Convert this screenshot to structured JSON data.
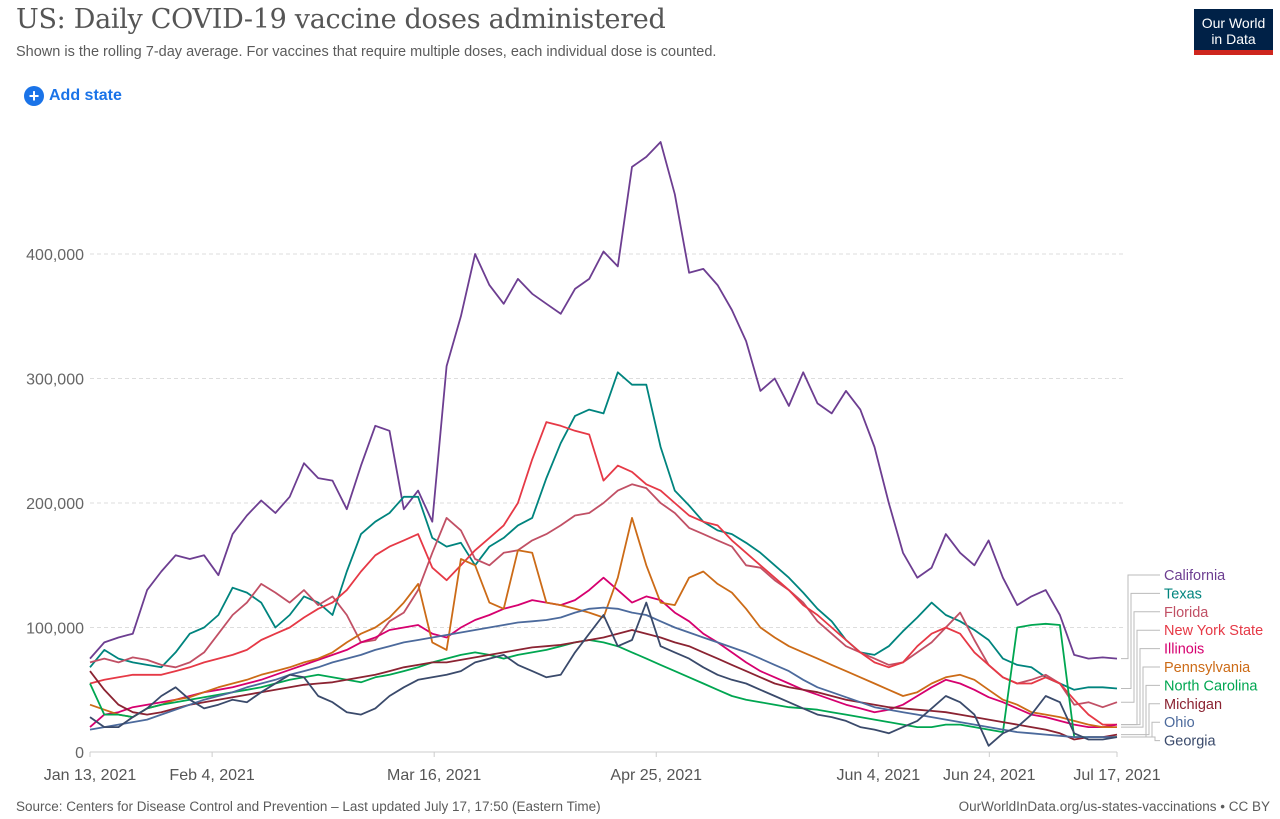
{
  "header": {
    "title": "US: Daily COVID-19 vaccine doses administered",
    "subtitle": "Shown is the rolling 7-day average. For vaccines that require multiple doses, each individual dose is counted.",
    "logo_line1": "Our World",
    "logo_line2": "in Data",
    "add_state_label": "Add state",
    "add_state_icon": "plus-circle-icon"
  },
  "footer": {
    "source": "Source: Centers for Disease Control and Prevention – Last updated July 17, 17:50 (Eastern Time)",
    "attribution": "OurWorldInData.org/us-states-vaccinations • CC BY"
  },
  "chart_data": {
    "type": "line",
    "title": "US: Daily COVID-19 vaccine doses administered",
    "subtitle": "Shown is the rolling 7-day average. For vaccines that require multiple doses, each individual dose is counted.",
    "xlabel": "",
    "ylabel": "",
    "x_start": "2021-01-13",
    "x_end": "2021-07-17",
    "x_step_days": 3,
    "ylim": [
      0,
      490000
    ],
    "grid": "horizontal-dashed",
    "legend": "right-end-labels",
    "x_ticks": [
      {
        "label": "Jan 13, 2021",
        "day": 0
      },
      {
        "label": "Feb 4, 2021",
        "day": 22
      },
      {
        "label": "Mar 16, 2021",
        "day": 62
      },
      {
        "label": "Apr 25, 2021",
        "day": 102
      },
      {
        "label": "Jun 4, 2021",
        "day": 142
      },
      {
        "label": "Jun 24, 2021",
        "day": 162
      },
      {
        "label": "Jul 17, 2021",
        "day": 185
      }
    ],
    "y_ticks": [
      {
        "label": "0",
        "value": 0
      },
      {
        "label": "100,000",
        "value": 100000
      },
      {
        "label": "200,000",
        "value": 200000
      },
      {
        "label": "300,000",
        "value": 300000
      },
      {
        "label": "400,000",
        "value": 400000
      }
    ],
    "series": [
      {
        "name": "California",
        "color": "#6d3e91",
        "values": [
          75000,
          88000,
          92000,
          95000,
          130000,
          145000,
          158000,
          155000,
          158000,
          142000,
          175000,
          190000,
          202000,
          192000,
          205000,
          232000,
          220000,
          218000,
          195000,
          230000,
          262000,
          258000,
          195000,
          210000,
          185000,
          310000,
          350000,
          400000,
          375000,
          360000,
          380000,
          368000,
          360000,
          352000,
          372000,
          380000,
          402000,
          390000,
          470000,
          478000,
          490000,
          448000,
          385000,
          388000,
          375000,
          355000,
          330000,
          290000,
          300000,
          278000,
          305000,
          280000,
          272000,
          290000,
          275000,
          245000,
          200000,
          160000,
          140000,
          148000,
          175000,
          160000,
          150000,
          170000,
          140000,
          118000,
          125000,
          130000,
          110000,
          78000,
          75000,
          76000,
          75000
        ]
      },
      {
        "name": "Texas",
        "color": "#00847e",
        "values": [
          68000,
          82000,
          75000,
          72000,
          70000,
          68000,
          80000,
          95000,
          100000,
          110000,
          132000,
          128000,
          120000,
          100000,
          110000,
          125000,
          120000,
          110000,
          145000,
          175000,
          185000,
          192000,
          205000,
          205000,
          172000,
          165000,
          168000,
          150000,
          165000,
          172000,
          182000,
          188000,
          220000,
          248000,
          270000,
          275000,
          272000,
          305000,
          295000,
          295000,
          245000,
          210000,
          198000,
          185000,
          178000,
          175000,
          168000,
          160000,
          150000,
          140000,
          128000,
          115000,
          105000,
          90000,
          80000,
          78000,
          85000,
          97000,
          108000,
          120000,
          110000,
          105000,
          98000,
          90000,
          75000,
          70000,
          68000,
          60000,
          55000,
          50000,
          52000,
          52000,
          51000
        ]
      },
      {
        "name": "Florida",
        "color": "#c15065",
        "values": [
          72000,
          75000,
          72000,
          76000,
          74000,
          70000,
          68000,
          72000,
          80000,
          95000,
          110000,
          120000,
          135000,
          128000,
          120000,
          130000,
          118000,
          125000,
          110000,
          88000,
          90000,
          105000,
          112000,
          130000,
          160000,
          188000,
          178000,
          155000,
          150000,
          160000,
          162000,
          170000,
          175000,
          182000,
          190000,
          192000,
          200000,
          210000,
          215000,
          212000,
          200000,
          192000,
          180000,
          175000,
          170000,
          165000,
          150000,
          148000,
          138000,
          130000,
          120000,
          105000,
          95000,
          85000,
          80000,
          75000,
          70000,
          72000,
          80000,
          88000,
          100000,
          112000,
          90000,
          70000,
          60000,
          55000,
          58000,
          62000,
          55000,
          38000,
          40000,
          36000,
          40000
        ]
      },
      {
        "name": "New York State",
        "color": "#e63946",
        "values": [
          55000,
          58000,
          60000,
          62000,
          62000,
          62000,
          65000,
          68000,
          72000,
          75000,
          78000,
          82000,
          90000,
          95000,
          100000,
          108000,
          115000,
          120000,
          130000,
          145000,
          158000,
          165000,
          170000,
          175000,
          148000,
          138000,
          150000,
          162000,
          172000,
          182000,
          200000,
          235000,
          265000,
          262000,
          258000,
          255000,
          218000,
          230000,
          225000,
          215000,
          210000,
          200000,
          190000,
          185000,
          182000,
          170000,
          160000,
          150000,
          140000,
          130000,
          118000,
          110000,
          100000,
          90000,
          80000,
          72000,
          68000,
          72000,
          85000,
          95000,
          100000,
          95000,
          80000,
          70000,
          60000,
          55000,
          55000,
          60000,
          55000,
          42000,
          30000,
          22000,
          22000
        ]
      },
      {
        "name": "Illinois",
        "color": "#d6006f",
        "values": [
          20000,
          30000,
          32000,
          36000,
          38000,
          40000,
          42000,
          45000,
          48000,
          50000,
          52000,
          55000,
          58000,
          62000,
          66000,
          70000,
          74000,
          78000,
          82000,
          88000,
          92000,
          98000,
          100000,
          102000,
          95000,
          92000,
          100000,
          106000,
          110000,
          115000,
          118000,
          122000,
          120000,
          118000,
          122000,
          130000,
          140000,
          130000,
          120000,
          125000,
          122000,
          112000,
          105000,
          95000,
          88000,
          80000,
          72000,
          65000,
          60000,
          55000,
          50000,
          46000,
          42000,
          38000,
          35000,
          32000,
          34000,
          38000,
          45000,
          52000,
          58000,
          55000,
          50000,
          44000,
          40000,
          35000,
          30000,
          28000,
          25000,
          22000,
          20000,
          20000,
          22000
        ]
      },
      {
        "name": "Pennsylvania",
        "color": "#cc6b17",
        "values": [
          38000,
          34000,
          30000,
          28000,
          35000,
          38000,
          42000,
          44000,
          48000,
          52000,
          55000,
          58000,
          62000,
          65000,
          68000,
          72000,
          75000,
          80000,
          88000,
          95000,
          100000,
          108000,
          120000,
          135000,
          88000,
          82000,
          155000,
          150000,
          120000,
          115000,
          162000,
          160000,
          120000,
          118000,
          115000,
          112000,
          108000,
          140000,
          188000,
          150000,
          120000,
          118000,
          140000,
          145000,
          135000,
          128000,
          115000,
          100000,
          92000,
          85000,
          80000,
          75000,
          70000,
          65000,
          60000,
          55000,
          50000,
          45000,
          48000,
          55000,
          60000,
          62000,
          58000,
          50000,
          42000,
          38000,
          32000,
          30000,
          28000,
          25000,
          22000,
          20000,
          20000
        ]
      },
      {
        "name": "North Carolina",
        "color": "#00a651",
        "values": [
          55000,
          30000,
          30000,
          28000,
          35000,
          38000,
          40000,
          42000,
          44000,
          46000,
          48000,
          50000,
          52000,
          55000,
          58000,
          60000,
          62000,
          60000,
          58000,
          56000,
          60000,
          62000,
          65000,
          68000,
          72000,
          75000,
          78000,
          80000,
          78000,
          75000,
          78000,
          80000,
          82000,
          85000,
          88000,
          90000,
          88000,
          85000,
          80000,
          75000,
          70000,
          65000,
          60000,
          55000,
          50000,
          45000,
          42000,
          40000,
          38000,
          36000,
          35000,
          34000,
          32000,
          30000,
          28000,
          26000,
          24000,
          22000,
          20000,
          20000,
          22000,
          22000,
          20000,
          18000,
          16000,
          100000,
          102000,
          103000,
          102000,
          12000,
          12000,
          12000,
          12000
        ]
      },
      {
        "name": "Michigan",
        "color": "#8b2332",
        "values": [
          65000,
          50000,
          38000,
          32000,
          30000,
          32000,
          35000,
          38000,
          40000,
          42000,
          44000,
          46000,
          48000,
          50000,
          52000,
          54000,
          55000,
          56000,
          58000,
          60000,
          62000,
          65000,
          68000,
          70000,
          72000,
          72000,
          74000,
          76000,
          78000,
          80000,
          82000,
          84000,
          85000,
          86000,
          88000,
          90000,
          92000,
          95000,
          98000,
          95000,
          92000,
          88000,
          85000,
          80000,
          75000,
          70000,
          65000,
          60000,
          55000,
          52000,
          50000,
          48000,
          45000,
          42000,
          40000,
          38000,
          36000,
          35000,
          34000,
          33000,
          32000,
          30000,
          28000,
          26000,
          24000,
          22000,
          20000,
          18000,
          15000,
          10000,
          12000,
          12000,
          14000
        ]
      },
      {
        "name": "Ohio",
        "color": "#4c6a9c",
        "values": [
          18000,
          20000,
          22000,
          24000,
          26000,
          30000,
          34000,
          38000,
          42000,
          45000,
          48000,
          52000,
          55000,
          58000,
          62000,
          65000,
          68000,
          72000,
          75000,
          78000,
          82000,
          85000,
          88000,
          90000,
          92000,
          94000,
          96000,
          98000,
          100000,
          102000,
          104000,
          105000,
          106000,
          108000,
          112000,
          115000,
          116000,
          115000,
          112000,
          110000,
          105000,
          100000,
          96000,
          92000,
          88000,
          84000,
          80000,
          75000,
          70000,
          65000,
          58000,
          52000,
          48000,
          44000,
          40000,
          36000,
          34000,
          32000,
          30000,
          28000,
          26000,
          24000,
          22000,
          20000,
          18000,
          16000,
          15000,
          14000,
          13000,
          12000,
          12000,
          12000,
          12000
        ]
      },
      {
        "name": "Georgia",
        "color": "#3a4a6b",
        "values": [
          28000,
          20000,
          20000,
          28000,
          35000,
          45000,
          52000,
          42000,
          35000,
          38000,
          42000,
          40000,
          48000,
          55000,
          62000,
          60000,
          45000,
          40000,
          32000,
          30000,
          35000,
          45000,
          52000,
          58000,
          60000,
          62000,
          65000,
          72000,
          75000,
          78000,
          70000,
          65000,
          60000,
          62000,
          80000,
          95000,
          110000,
          85000,
          90000,
          120000,
          85000,
          80000,
          75000,
          68000,
          62000,
          58000,
          55000,
          50000,
          45000,
          40000,
          35000,
          30000,
          28000,
          25000,
          20000,
          18000,
          15000,
          20000,
          25000,
          35000,
          45000,
          40000,
          30000,
          5000,
          15000,
          20000,
          30000,
          45000,
          40000,
          15000,
          10000,
          10000,
          12000
        ]
      }
    ]
  }
}
